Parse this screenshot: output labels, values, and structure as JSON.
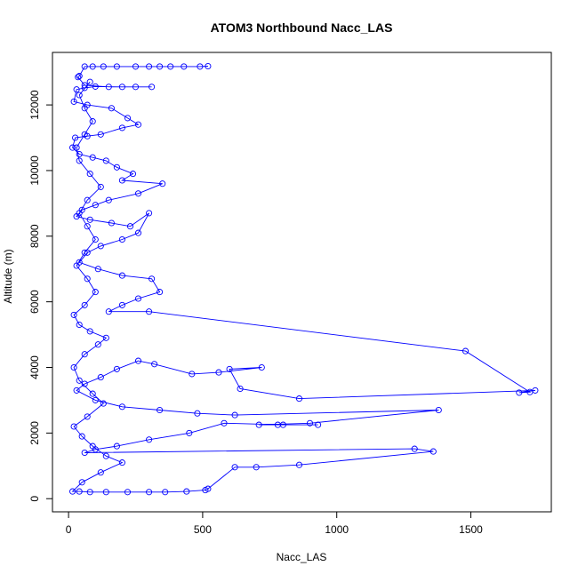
{
  "chart_data": {
    "type": "line",
    "title": "ATOM3 Northbound Nacc_LAS",
    "xlabel": "Nacc_LAS",
    "ylabel": "Altitude (m)",
    "xlim": [
      -60,
      1800
    ],
    "ylim": [
      -400,
      13600
    ],
    "x_ticks": [
      0,
      500,
      1000,
      1500
    ],
    "y_ticks": [
      0,
      2000,
      4000,
      6000,
      8000,
      10000,
      12000
    ],
    "grid": false,
    "color": "#0000FF",
    "marker": "open-circle",
    "series": [
      {
        "name": "",
        "points": [
          [
            520,
            13180
          ],
          [
            490,
            13170
          ],
          [
            430,
            13170
          ],
          [
            380,
            13170
          ],
          [
            340,
            13170
          ],
          [
            300,
            13170
          ],
          [
            250,
            13170
          ],
          [
            180,
            13170
          ],
          [
            130,
            13170
          ],
          [
            90,
            13170
          ],
          [
            60,
            13170
          ],
          [
            40,
            12880
          ],
          [
            35,
            12850
          ],
          [
            60,
            12600
          ],
          [
            150,
            12550
          ],
          [
            250,
            12550
          ],
          [
            310,
            12550
          ],
          [
            200,
            12550
          ],
          [
            100,
            12560
          ],
          [
            60,
            12520
          ],
          [
            30,
            12470
          ],
          [
            20,
            12100
          ],
          [
            70,
            12000
          ],
          [
            160,
            11900
          ],
          [
            220,
            11600
          ],
          [
            260,
            11400
          ],
          [
            200,
            11300
          ],
          [
            120,
            11100
          ],
          [
            70,
            11050
          ],
          [
            25,
            11000
          ],
          [
            15,
            10700
          ],
          [
            40,
            10500
          ],
          [
            90,
            10400
          ],
          [
            140,
            10300
          ],
          [
            180,
            10100
          ],
          [
            240,
            9900
          ],
          [
            200,
            9700
          ],
          [
            350,
            9600
          ],
          [
            260,
            9300
          ],
          [
            150,
            9100
          ],
          [
            100,
            8950
          ],
          [
            50,
            8800
          ],
          [
            30,
            8600
          ],
          [
            80,
            8500
          ],
          [
            160,
            8400
          ],
          [
            230,
            8300
          ],
          [
            300,
            8700
          ],
          [
            260,
            8100
          ],
          [
            200,
            7900
          ],
          [
            120,
            7700
          ],
          [
            70,
            7500
          ],
          [
            40,
            7200
          ],
          [
            110,
            7000
          ],
          [
            200,
            6800
          ],
          [
            310,
            6700
          ],
          [
            340,
            6300
          ],
          [
            260,
            6100
          ],
          [
            200,
            5900
          ],
          [
            150,
            5700
          ],
          [
            300,
            5700
          ],
          [
            1480,
            4500
          ],
          [
            1720,
            3250
          ],
          [
            1680,
            3230
          ],
          [
            1740,
            3300
          ],
          [
            860,
            3050
          ],
          [
            640,
            3350
          ],
          [
            600,
            3950
          ],
          [
            720,
            4000
          ],
          [
            560,
            3850
          ],
          [
            460,
            3800
          ],
          [
            320,
            4100
          ],
          [
            260,
            4200
          ],
          [
            180,
            3950
          ],
          [
            120,
            3700
          ],
          [
            60,
            3500
          ],
          [
            30,
            3300
          ],
          [
            100,
            3000
          ],
          [
            200,
            2800
          ],
          [
            340,
            2700
          ],
          [
            480,
            2600
          ],
          [
            620,
            2550
          ],
          [
            1380,
            2700
          ],
          [
            900,
            2300
          ],
          [
            710,
            2250
          ],
          [
            780,
            2250
          ],
          [
            930,
            2250
          ],
          [
            800,
            2250
          ],
          [
            580,
            2300
          ],
          [
            450,
            2000
          ],
          [
            300,
            1800
          ],
          [
            180,
            1600
          ],
          [
            100,
            1500
          ],
          [
            60,
            1400
          ],
          [
            1290,
            1520
          ],
          [
            1360,
            1440
          ],
          [
            860,
            1030
          ],
          [
            700,
            960
          ],
          [
            620,
            960
          ],
          [
            520,
            300
          ],
          [
            510,
            260
          ],
          [
            440,
            220
          ],
          [
            360,
            200
          ],
          [
            300,
            200
          ],
          [
            220,
            200
          ],
          [
            140,
            200
          ],
          [
            80,
            200
          ],
          [
            40,
            220
          ],
          [
            15,
            220
          ],
          [
            50,
            500
          ],
          [
            120,
            800
          ],
          [
            200,
            1100
          ],
          [
            140,
            1300
          ],
          [
            90,
            1600
          ],
          [
            50,
            1900
          ],
          [
            20,
            2200
          ],
          [
            70,
            2500
          ],
          [
            130,
            2900
          ],
          [
            90,
            3200
          ],
          [
            40,
            3600
          ],
          [
            20,
            4000
          ],
          [
            60,
            4400
          ],
          [
            110,
            4700
          ],
          [
            140,
            4900
          ],
          [
            80,
            5100
          ],
          [
            40,
            5300
          ],
          [
            20,
            5600
          ],
          [
            60,
            5900
          ],
          [
            100,
            6300
          ],
          [
            70,
            6700
          ],
          [
            30,
            7100
          ],
          [
            60,
            7500
          ],
          [
            100,
            7900
          ],
          [
            70,
            8300
          ],
          [
            40,
            8700
          ],
          [
            70,
            9100
          ],
          [
            120,
            9500
          ],
          [
            80,
            9900
          ],
          [
            40,
            10300
          ],
          [
            30,
            10700
          ],
          [
            60,
            11100
          ],
          [
            90,
            11500
          ],
          [
            60,
            11900
          ],
          [
            40,
            12300
          ],
          [
            80,
            12700
          ]
        ]
      }
    ]
  }
}
